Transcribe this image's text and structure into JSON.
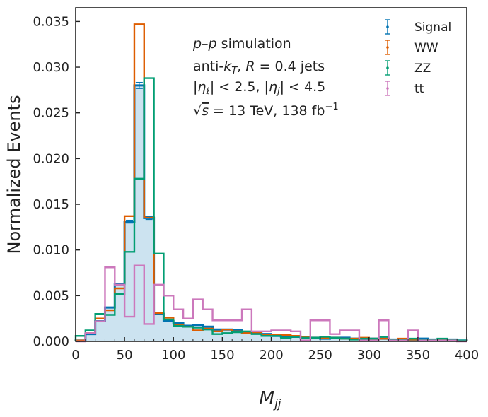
{
  "chart_data": {
    "type": "histogram",
    "xlabel": "M_jj",
    "ylabel": "Normalized Events",
    "xlim": [
      0,
      400
    ],
    "ylim": [
      0,
      0.0365
    ],
    "xticks": [
      "0",
      "50",
      "100",
      "150",
      "200",
      "250",
      "300",
      "350",
      "400"
    ],
    "yticks": [
      "0.000",
      "0.005",
      "0.010",
      "0.015",
      "0.020",
      "0.025",
      "0.030",
      "0.035"
    ],
    "annotation": {
      "line1_italic": "p–p",
      "line1_rest": " simulation",
      "line2": "anti-k_T, R = 0.4 jets",
      "line3": "|η_ℓ| < 2.5, |η_j| < 4.5",
      "line4": "√s = 13 TeV, 138 fb⁻¹"
    },
    "bin_edges": [
      0,
      10,
      20,
      30,
      40,
      50,
      60,
      70,
      80,
      90,
      100,
      110,
      120,
      130,
      140,
      150,
      160,
      170,
      180,
      190,
      200,
      210,
      220,
      230,
      240,
      250,
      260,
      270,
      280,
      290,
      300,
      310,
      320,
      330,
      340,
      350,
      360,
      370,
      380,
      390,
      400
    ],
    "series": [
      {
        "name": "Signal",
        "color": "#0173b2",
        "filled": true,
        "values": [
          0.0001,
          0.0008,
          0.0022,
          0.0037,
          0.0063,
          0.0131,
          0.028,
          0.0135,
          0.003,
          0.0022,
          0.002,
          0.0017,
          0.0018,
          0.0016,
          0.0013,
          0.0013,
          0.0012,
          0.001,
          0.0009,
          0.0008,
          0.0006,
          0.0005,
          0.0005,
          0.0004,
          0.0004,
          0.0003,
          0.0004,
          0.0004,
          0.0003,
          0.0003,
          0.0003,
          0.0003,
          0.0002,
          0.0002,
          0.0002,
          0.0003,
          0.0002,
          0.0002,
          0.0002,
          0.0001
        ]
      },
      {
        "name": "WW",
        "color": "#de5d00",
        "filled": false,
        "values": [
          0.0001,
          0.0009,
          0.0025,
          0.0034,
          0.0058,
          0.0137,
          0.0347,
          0.0136,
          0.0031,
          0.0026,
          0.0018,
          0.0016,
          0.0012,
          0.0014,
          0.0011,
          0.0013,
          0.0011,
          0.0009,
          0.001,
          0.0007,
          0.0007,
          0.0007,
          0.0006,
          0.0005,
          0.0004,
          0.0004,
          0.0004,
          0.0003,
          0.0003,
          0.0004,
          0.0003,
          0.0003,
          0.0002,
          0.0003,
          0.0002,
          0.0002,
          0.0002,
          0.0002,
          0.0002,
          0.0001
        ]
      },
      {
        "name": "ZZ",
        "color": "#029e73",
        "filled": false,
        "values": [
          0.0006,
          0.0012,
          0.003,
          0.0029,
          0.0052,
          0.0098,
          0.0178,
          0.0288,
          0.0096,
          0.0024,
          0.0017,
          0.0016,
          0.0015,
          0.0013,
          0.0008,
          0.0009,
          0.001,
          0.0011,
          0.0008,
          0.0006,
          0.0006,
          0.0004,
          0.0005,
          0.0004,
          0.0004,
          0.0005,
          0.0004,
          0.0003,
          0.0002,
          0.0003,
          0.0003,
          0.0005,
          0.0002,
          0.0002,
          0.0003,
          0.0002,
          0.0002,
          0.0003,
          0.0002,
          0.0001
        ]
      },
      {
        "name": "tt",
        "color": "#cc78bc",
        "filled": false,
        "values": [
          0,
          0.0009,
          0.0022,
          0.0081,
          0.0062,
          0.0027,
          0.0083,
          0.0019,
          0.0062,
          0.005,
          0.0035,
          0.0025,
          0.0046,
          0.0035,
          0.0023,
          0.0023,
          0.0023,
          0.0035,
          0.0011,
          0.0011,
          0.0012,
          0.0012,
          0.0011,
          0.0001,
          0.0023,
          0.0023,
          0.0008,
          0.0012,
          0.0012,
          0.0001,
          0.0001,
          0.0023,
          0.0001,
          0.0001,
          0.0012,
          0.0001,
          0.0001,
          0.0001,
          0.0001,
          0
        ]
      }
    ]
  }
}
